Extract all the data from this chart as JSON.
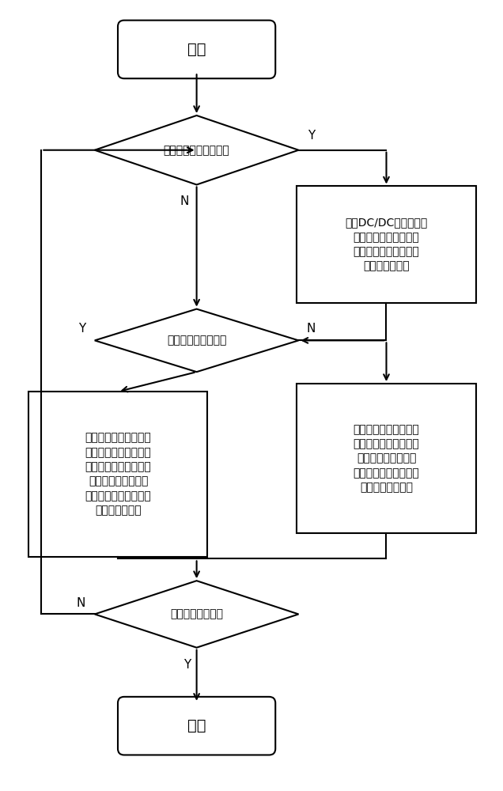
{
  "bg_color": "#ffffff",
  "line_color": "#000000",
  "text_color": "#000000",
  "lw": 1.5,
  "start_text": "开始",
  "end_text": "结束",
  "d1_text": "列车处于过无电区状态",
  "d2_text": "牵引网处于正常状态",
  "d3_text": "列车是否到达终点",
  "box1_text": "通过DC/DC变流器将锂\n电池接入母线，以维持\n列车运行速度，并为列\n车辅助系统供电",
  "box2_text": "牵引网正常，牵引网与\n车载电池共同为列车牵\n引提供能量，以牵引网\n功率变化率为约束条\n件，实施分配储能与牵\n引网的功率输出",
  "box3_text": "地面储能与车载储能组\n成孤网，与车载储能系\n统一起为列车运行供\n电，保证列车辅助系统\n供电以及安全运行",
  "fs_title": 14,
  "fs_label": 11,
  "fs_small": 10
}
